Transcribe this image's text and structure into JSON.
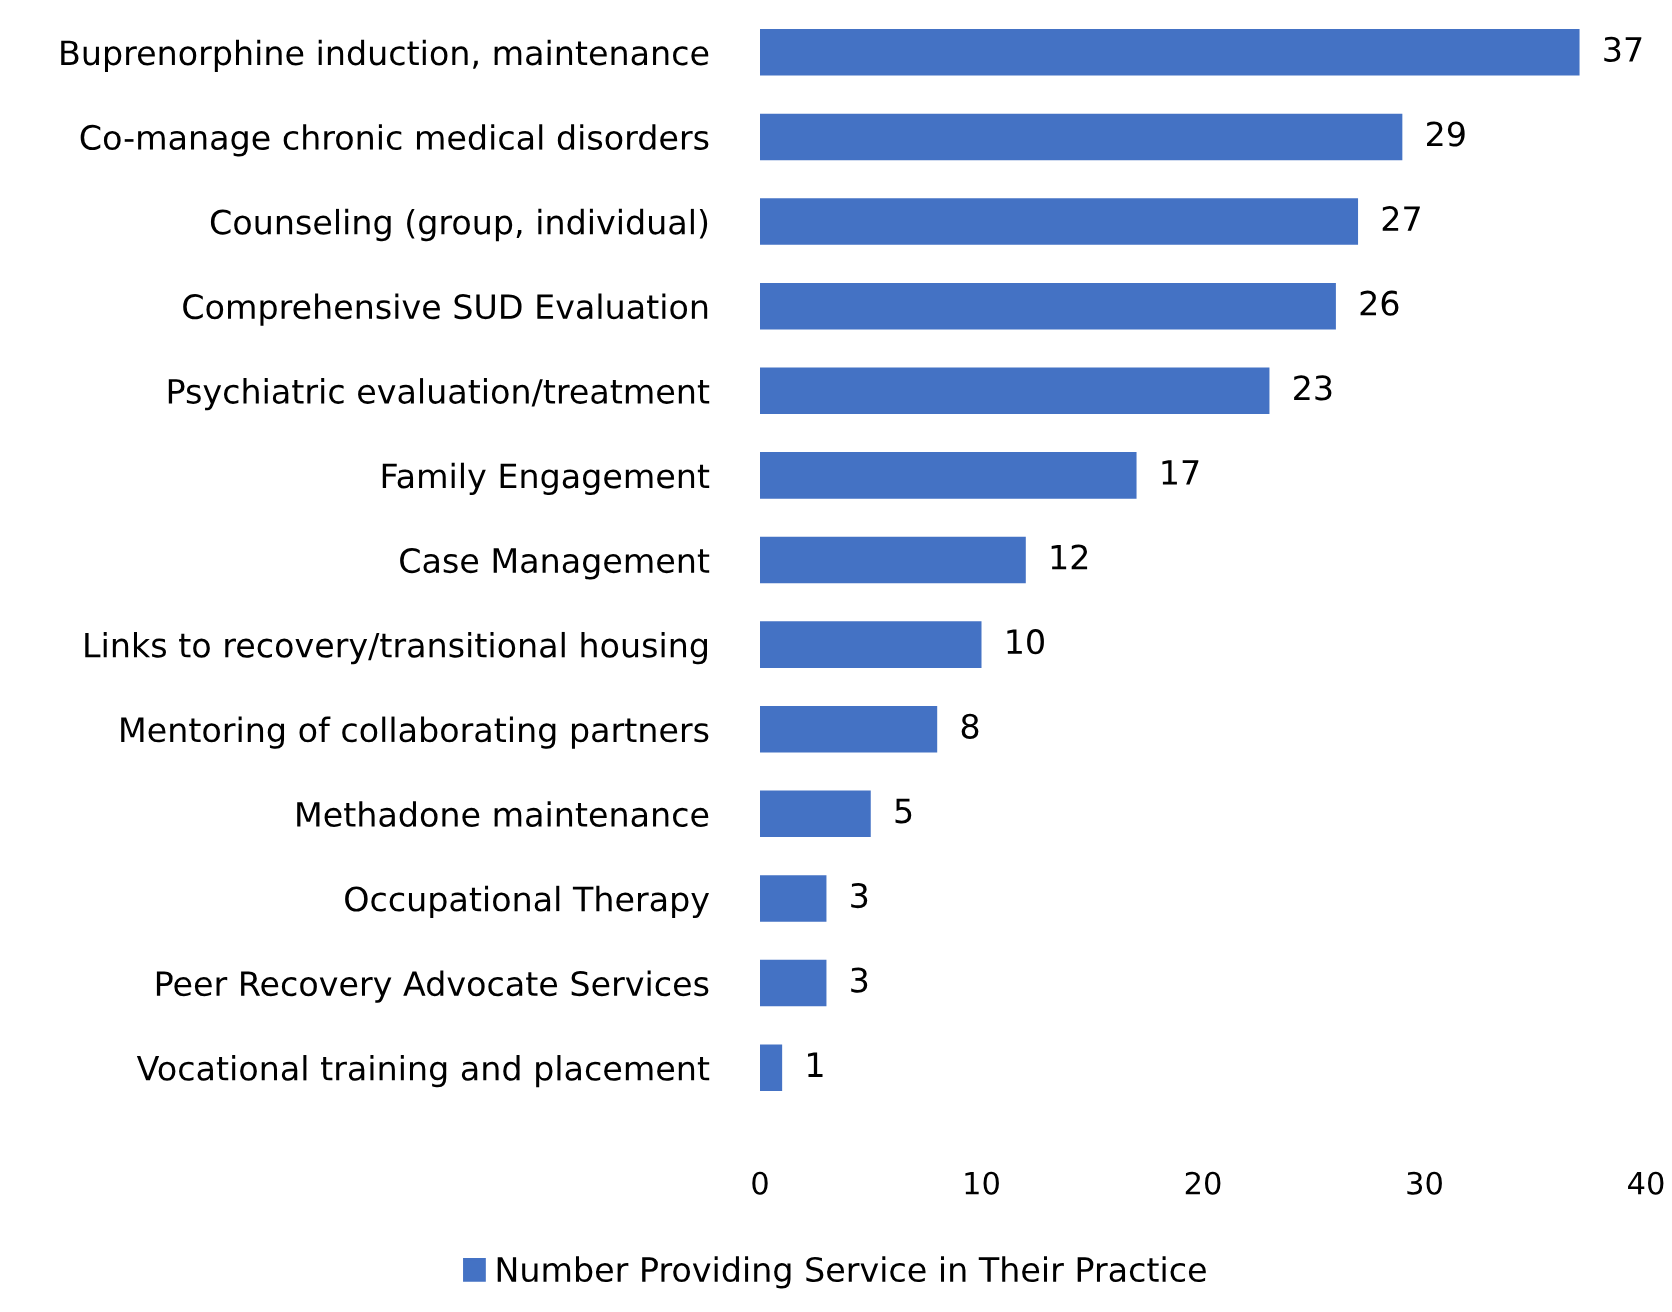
{
  "chart_data": {
    "type": "bar",
    "orientation": "horizontal",
    "categories": [
      "Buprenorphine induction, maintenance",
      "Co-manage chronic medical disorders",
      "Counseling (group, individual)",
      "Comprehensive SUD Evaluation",
      "Psychiatric evaluation/treatment",
      "Family Engagement",
      "Case Management",
      "Links to recovery/transitional housing",
      "Mentoring of collaborating partners",
      "Methadone maintenance",
      "Occupational Therapy",
      "Peer Recovery Advocate Services",
      "Vocational training and placement"
    ],
    "series": [
      {
        "name": "Number Providing Service in Their Practice",
        "color": "#4472c4",
        "values": [
          37,
          29,
          27,
          26,
          23,
          17,
          12,
          10,
          8,
          5,
          3,
          3,
          1
        ]
      }
    ],
    "xlim": [
      0,
      40
    ],
    "xticks": [
      0,
      10,
      20,
      30,
      40
    ],
    "grid": false,
    "legend": "bottom",
    "data_labels": true
  }
}
